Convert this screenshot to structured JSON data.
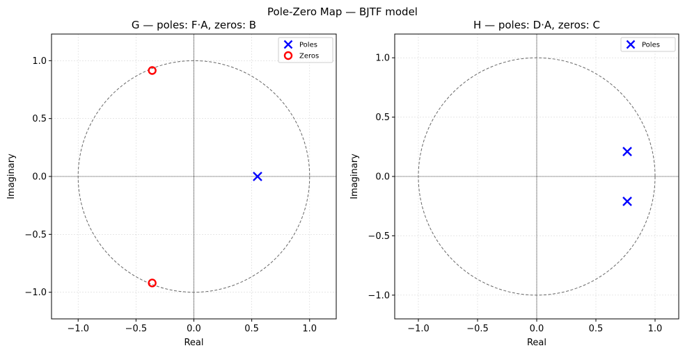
{
  "suptitle": "Pole-Zero Map  —  BJTF model",
  "chart_data": [
    {
      "type": "scatter",
      "title": "G  —  poles: F·A,  zeros: B",
      "xlabel": "Real",
      "ylabel": "Imaginary",
      "xlim": [
        -1.23,
        1.23
      ],
      "ylim": [
        -1.23,
        1.23
      ],
      "xticks": [
        -1.0,
        -0.5,
        0.0,
        0.5,
        1.0
      ],
      "yticks": [
        -1.0,
        -0.5,
        0.0,
        0.5,
        1.0
      ],
      "xtick_labels": [
        "−1.0",
        "−0.5",
        "0.0",
        "0.5",
        "1.0"
      ],
      "ytick_labels": [
        "−1.0",
        "−0.5",
        "0.0",
        "0.5",
        "1.0"
      ],
      "grid": true,
      "unit_circle": true,
      "legend": "top-right",
      "series": [
        {
          "name": "Poles",
          "marker": "x",
          "color": "#0000ff",
          "points": [
            [
              0.55,
              0.0
            ]
          ]
        },
        {
          "name": "Zeros",
          "marker": "o",
          "color": "#ff0000",
          "points": [
            [
              -0.36,
              0.915
            ],
            [
              -0.36,
              -0.92
            ]
          ]
        }
      ]
    },
    {
      "type": "scatter",
      "title": "H  —  poles: D·A,  zeros: C",
      "xlabel": "Real",
      "ylabel": "Imaginary",
      "xlim": [
        -1.2,
        1.2
      ],
      "ylim": [
        -1.2,
        1.2
      ],
      "xticks": [
        -1.0,
        -0.5,
        0.0,
        0.5,
        1.0
      ],
      "yticks": [
        -1.0,
        -0.5,
        0.0,
        0.5,
        1.0
      ],
      "xtick_labels": [
        "−1.0",
        "−0.5",
        "0.0",
        "0.5",
        "1.0"
      ],
      "ytick_labels": [
        "−1.0",
        "−0.5",
        "0.0",
        "0.5",
        "1.0"
      ],
      "grid": true,
      "unit_circle": true,
      "legend": "top-right",
      "series": [
        {
          "name": "Poles",
          "marker": "x",
          "color": "#0000ff",
          "points": [
            [
              0.765,
              0.21
            ],
            [
              0.765,
              -0.21
            ]
          ]
        }
      ]
    }
  ]
}
